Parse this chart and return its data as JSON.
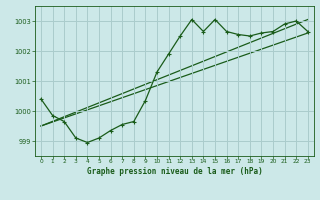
{
  "title": "Graphe pression niveau de la mer (hPa)",
  "background_color": "#cce8e8",
  "grid_color": "#aacccc",
  "line_color": "#1a5c1a",
  "xlim": [
    -0.5,
    23.5
  ],
  "ylim": [
    998.5,
    1003.5
  ],
  "yticks": [
    999,
    1000,
    1001,
    1002,
    1003
  ],
  "xticks": [
    0,
    1,
    2,
    3,
    4,
    5,
    6,
    7,
    8,
    9,
    10,
    11,
    12,
    13,
    14,
    15,
    16,
    17,
    18,
    19,
    20,
    21,
    22,
    23
  ],
  "pressure_data": [
    1000.4,
    999.85,
    999.65,
    999.1,
    998.95,
    999.1,
    999.35,
    999.55,
    999.65,
    1000.35,
    1001.3,
    1001.9,
    1002.5,
    1003.05,
    1002.65,
    1003.05,
    1002.65,
    1002.55,
    1002.5,
    1002.6,
    1002.65,
    1002.9,
    1003.0,
    1002.65
  ],
  "trend_line1": [
    [
      0,
      999.5
    ],
    [
      23,
      1002.6
    ]
  ],
  "trend_line2": [
    [
      0,
      999.5
    ],
    [
      23,
      1003.05
    ]
  ]
}
